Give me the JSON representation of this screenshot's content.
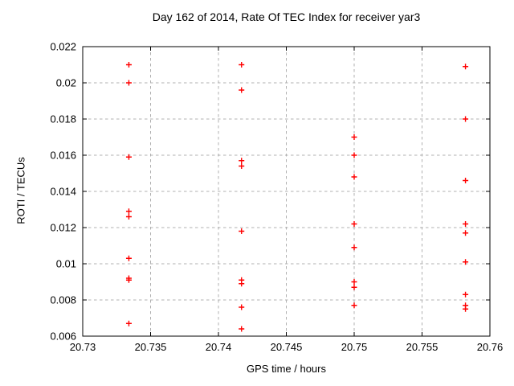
{
  "chart_data": {
    "type": "scatter",
    "title": "Day 162 of 2014, Rate Of TEC Index for receiver yar3",
    "xlabel": "GPS time / hours",
    "ylabel": "ROTI / TECUs",
    "xlim": [
      20.73,
      20.76
    ],
    "ylim": [
      0.006,
      0.022
    ],
    "xticks": [
      20.73,
      20.735,
      20.74,
      20.745,
      20.75,
      20.755,
      20.76
    ],
    "xtick_labels": [
      "20.73",
      "20.735",
      "20.74",
      "20.745",
      "20.75",
      "20.755",
      "20.76"
    ],
    "yticks": [
      0.006,
      0.008,
      0.01,
      0.012,
      0.014,
      0.016,
      0.018,
      0.02,
      0.022
    ],
    "ytick_labels": [
      "0.006",
      "0.008",
      "0.01",
      "0.012",
      "0.014",
      "0.016",
      "0.018",
      "0.02",
      "0.022"
    ],
    "grid": true,
    "legend": "none",
    "marker": {
      "shape": "plus",
      "color": "#ff0000",
      "size": 7
    },
    "axis_color": "#000000",
    "grid_color": "#b0b0b0",
    "series": [
      {
        "name": "ROTI",
        "points": [
          [
            20.7334,
            0.021
          ],
          [
            20.7334,
            0.02
          ],
          [
            20.7334,
            0.0159
          ],
          [
            20.7334,
            0.0129
          ],
          [
            20.7334,
            0.0126
          ],
          [
            20.7334,
            0.0103
          ],
          [
            20.7334,
            0.0092
          ],
          [
            20.7334,
            0.0091
          ],
          [
            20.7334,
            0.0067
          ],
          [
            20.7417,
            0.021
          ],
          [
            20.7417,
            0.0196
          ],
          [
            20.7417,
            0.0157
          ],
          [
            20.7417,
            0.0154
          ],
          [
            20.7417,
            0.0118
          ],
          [
            20.7417,
            0.0091
          ],
          [
            20.7417,
            0.0089
          ],
          [
            20.7417,
            0.0076
          ],
          [
            20.7417,
            0.0064
          ],
          [
            20.75,
            0.017
          ],
          [
            20.75,
            0.016
          ],
          [
            20.75,
            0.0148
          ],
          [
            20.75,
            0.0122
          ],
          [
            20.75,
            0.0109
          ],
          [
            20.75,
            0.009
          ],
          [
            20.75,
            0.0087
          ],
          [
            20.75,
            0.0077
          ],
          [
            20.7582,
            0.0209
          ],
          [
            20.7582,
            0.018
          ],
          [
            20.7582,
            0.0146
          ],
          [
            20.7582,
            0.0122
          ],
          [
            20.7582,
            0.0117
          ],
          [
            20.7582,
            0.0101
          ],
          [
            20.7582,
            0.0083
          ],
          [
            20.7582,
            0.0077
          ],
          [
            20.7582,
            0.0075
          ]
        ]
      }
    ]
  }
}
